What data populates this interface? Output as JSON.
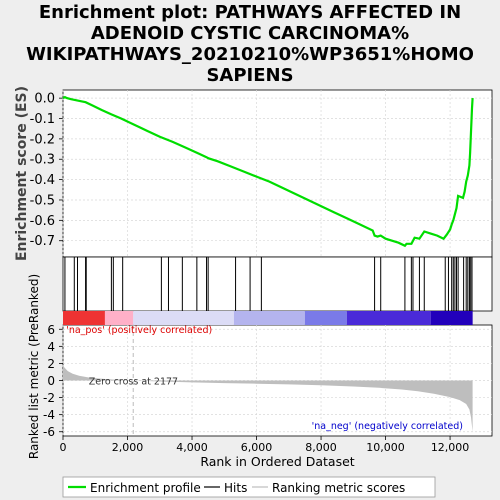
{
  "title_lines": [
    "Enrichment plot: PATHWAYS AFFECTED IN",
    "ADENOID CYSTIC CARCINOMA%",
    "WIKIPATHWAYS_20210210%WP3651%HOMO",
    "SAPIENS"
  ],
  "colors": {
    "background": "#eeeeee",
    "plot_bg": "#ffffff",
    "enrichment_line": "#00dd00",
    "hits": "#000000",
    "metric_fill": "#bebebe",
    "pos_label": "#dd0000",
    "neg_label": "#0000cc",
    "zero_cross_line": "#bbbbbb"
  },
  "chart_data": [
    {
      "type": "line",
      "panel": "enrichment",
      "ylabel": "Enrichment score (ES)",
      "xlim": [
        0,
        12700
      ],
      "ylim": [
        -0.78,
        0.04
      ],
      "yticks": [
        0.0,
        -0.1,
        -0.2,
        -0.3,
        -0.4,
        -0.5,
        -0.6,
        -0.7
      ],
      "ytick_labels": [
        "0.0",
        "-0.1",
        "-0.2",
        "-0.3",
        "-0.4",
        "-0.5",
        "-0.6",
        "-0.7"
      ],
      "grid": true,
      "series": [
        {
          "name": "Enrichment profile",
          "x": [
            0,
            60,
            120,
            250,
            400,
            550,
            700,
            900,
            1200,
            1500,
            1800,
            2200,
            2600,
            3000,
            3400,
            3800,
            4200,
            4450,
            4500,
            4800,
            5200,
            5600,
            6000,
            6400,
            6800,
            7200,
            7600,
            8000,
            8400,
            8800,
            9200,
            9600,
            9660,
            9750,
            9850,
            10000,
            10200,
            10400,
            10600,
            10650,
            10800,
            10900,
            11050,
            11200,
            11400,
            11600,
            11800,
            11900,
            12000,
            12050,
            12100,
            12150,
            12200,
            12250,
            12400,
            12450,
            12500,
            12550,
            12600,
            12620,
            12640,
            12660,
            12680,
            12700
          ],
          "y": [
            0.0,
            0.005,
            0.0,
            -0.005,
            -0.01,
            -0.015,
            -0.02,
            -0.035,
            -0.058,
            -0.08,
            -0.1,
            -0.13,
            -0.16,
            -0.19,
            -0.215,
            -0.243,
            -0.272,
            -0.29,
            -0.295,
            -0.31,
            -0.335,
            -0.36,
            -0.385,
            -0.41,
            -0.44,
            -0.47,
            -0.5,
            -0.53,
            -0.56,
            -0.59,
            -0.62,
            -0.65,
            -0.675,
            -0.68,
            -0.675,
            -0.69,
            -0.7,
            -0.71,
            -0.725,
            -0.715,
            -0.715,
            -0.685,
            -0.69,
            -0.655,
            -0.665,
            -0.675,
            -0.69,
            -0.67,
            -0.645,
            -0.62,
            -0.6,
            -0.57,
            -0.54,
            -0.48,
            -0.49,
            -0.46,
            -0.41,
            -0.38,
            -0.33,
            -0.27,
            -0.2,
            -0.12,
            -0.05,
            0.0
          ]
        }
      ]
    },
    {
      "type": "scatter",
      "panel": "hits",
      "series": [
        {
          "name": "Hits",
          "x": [
            60,
            350,
            450,
            700,
            720,
            1500,
            1560,
            1850,
            3050,
            3270,
            3700,
            4150,
            4450,
            4500,
            5350,
            5800,
            6150,
            9660,
            9850,
            10600,
            10800,
            10850,
            11050,
            11200,
            11850,
            11950,
            12050,
            12100,
            12150,
            12200,
            12250,
            12420,
            12500,
            12550,
            12600,
            12640,
            12680
          ]
        }
      ]
    },
    {
      "type": "heatmap",
      "panel": "ranked_list_colorbar",
      "segments": [
        {
          "x0": 0,
          "x1": 1300,
          "color": "#ee3333"
        },
        {
          "x0": 1300,
          "x1": 2177,
          "color": "#ffb0c8"
        },
        {
          "x0": 2177,
          "x1": 5300,
          "color": "#dcdcf6"
        },
        {
          "x0": 5300,
          "x1": 7500,
          "color": "#b4b4ee"
        },
        {
          "x0": 7500,
          "x1": 8800,
          "color": "#7a7ae8"
        },
        {
          "x0": 8800,
          "x1": 11400,
          "color": "#4a2ad8"
        },
        {
          "x0": 11400,
          "x1": 12700,
          "color": "#2200bb"
        }
      ]
    },
    {
      "type": "area",
      "panel": "ranked_metric",
      "ylabel": "Ranked list metric (PreRanked)",
      "xlabel": "Rank in Ordered Dataset",
      "xlim": [
        0,
        13300
      ],
      "ylim": [
        -6.5,
        6.5
      ],
      "yticks": [
        6,
        4,
        2,
        0,
        -2,
        -4,
        -6
      ],
      "ytick_labels": [
        "6",
        "4",
        "2",
        "0",
        "-2",
        "-4",
        "-6"
      ],
      "xticks": [
        0,
        2000,
        4000,
        6000,
        8000,
        10000,
        12000
      ],
      "xtick_labels": [
        "0",
        "2,000",
        "4,000",
        "6,000",
        "8,000",
        "10,000",
        "12,000"
      ],
      "grid": true,
      "series": [
        {
          "name": "Ranking metric scores",
          "x": [
            0,
            50,
            150,
            300,
            500,
            800,
            1200,
            1600,
            2000,
            2177,
            3000,
            4000,
            5000,
            6000,
            7000,
            8000,
            9000,
            9800,
            10500,
            11000,
            11500,
            12000,
            12300,
            12500,
            12600,
            12650,
            12700
          ],
          "y": [
            1.8,
            1.5,
            1.1,
            0.8,
            0.55,
            0.35,
            0.2,
            0.1,
            0.03,
            0.0,
            -0.12,
            -0.22,
            -0.3,
            -0.38,
            -0.46,
            -0.56,
            -0.7,
            -0.86,
            -1.05,
            -1.25,
            -1.55,
            -1.95,
            -2.3,
            -2.75,
            -3.4,
            -4.3,
            -6.0
          ]
        }
      ],
      "zero_cross_label": "Zero cross at 2177",
      "zero_cross_x": 2177,
      "pos_label": "'na_pos' (positively correlated)",
      "neg_label": "'na_neg' (negatively correlated)"
    }
  ],
  "legend": {
    "items": [
      "Enrichment profile",
      "Hits",
      "Ranking metric scores"
    ]
  }
}
